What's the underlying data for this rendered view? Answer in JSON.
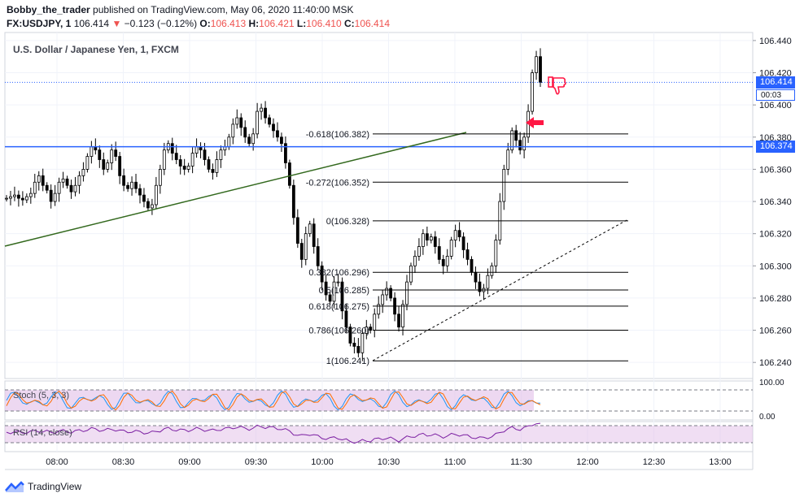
{
  "header": {
    "author": "Bobby_the_trader",
    "published_text": "published on TradingView.com, May 06, 2020 11:40:00 MSK",
    "symbol": "FX:USDJPY, 1",
    "last": "106.414",
    "change": "−0.123 (−0.12%)",
    "open_label": "O:",
    "open": "106.413",
    "high_label": "H:",
    "high": "106.421",
    "low_label": "L:",
    "low": "106.410",
    "close_label": "C:",
    "close": "106.414"
  },
  "chart_title": "U.S. Dollar / Japanese Yen, 1, FXCM",
  "price_axis": [
    "106.440",
    "106.420",
    "106.400",
    "106.380",
    "106.360",
    "106.340",
    "106.320",
    "106.300",
    "106.280",
    "106.260",
    "106.240"
  ],
  "time_axis": [
    "08:00",
    "08:30",
    "09:00",
    "09:30",
    "10:00",
    "10:30",
    "11:00",
    "11:30",
    "12:00",
    "12:30",
    "13:00"
  ],
  "last_price_tag": "106.414",
  "countdown": "00:03",
  "hline_tag": "106.374",
  "fib_levels": [
    {
      "label": "-0.618(106.382)",
      "price": 106.382
    },
    {
      "label": "-0.272(106.352)",
      "price": 106.352
    },
    {
      "label": "0(106.328)",
      "price": 106.328
    },
    {
      "label": "0.382(106.296)",
      "price": 106.296
    },
    {
      "label": "0.5(106.285)",
      "price": 106.285
    },
    {
      "label": "0.618(106.275)",
      "price": 106.275
    },
    {
      "label": "0.786(106.260)",
      "price": 106.26
    },
    {
      "label": "1(106.241)",
      "price": 106.241
    }
  ],
  "stoch": {
    "label": "Stoch (5, 3, 3)",
    "levels": [
      "100.00",
      "0.00"
    ]
  },
  "rsi": {
    "label": "RSI (14, close)"
  },
  "footer": {
    "brand": "TradingView"
  },
  "colors": {
    "up": "#000000",
    "down": "#000000",
    "trendline": "#33691e",
    "hline": "#2962ff",
    "fib": "#000000",
    "stoch_fill": "#e1bee7",
    "rsi_line": "#7b1fa2",
    "arrow": "#ff1744"
  },
  "chart_data": {
    "type": "candlestick",
    "series_name": "USDJPY",
    "y_range": [
      106.23,
      106.445
    ],
    "x_range": [
      "07:45",
      "13:15"
    ],
    "closes": [
      106.342,
      106.343,
      106.344,
      106.342,
      106.341,
      106.343,
      106.345,
      106.352,
      106.356,
      106.35,
      106.347,
      106.34,
      106.345,
      106.352,
      106.354,
      106.35,
      106.346,
      106.35,
      106.356,
      106.36,
      106.368,
      106.374,
      106.372,
      106.366,
      106.36,
      106.364,
      106.372,
      106.368,
      106.356,
      106.35,
      106.348,
      106.352,
      106.348,
      106.344,
      106.34,
      106.336,
      106.338,
      106.35,
      106.36,
      106.372,
      106.376,
      106.37,
      106.366,
      106.362,
      106.36,
      106.362,
      106.37,
      106.374,
      106.372,
      106.366,
      106.36,
      106.358,
      106.366,
      106.372,
      106.374,
      106.38,
      106.388,
      106.392,
      106.386,
      106.38,
      106.376,
      106.382,
      106.396,
      106.398,
      106.392,
      106.388,
      106.384,
      106.38,
      106.376,
      106.364,
      106.35,
      106.33,
      106.314,
      106.304,
      106.32,
      106.326,
      106.312,
      106.3,
      106.29,
      106.282,
      106.278,
      106.29,
      106.29,
      106.272,
      106.262,
      106.252,
      106.25,
      106.246,
      106.258,
      106.262,
      106.26,
      106.27,
      106.276,
      106.282,
      106.286,
      106.28,
      106.27,
      106.262,
      106.276,
      106.29,
      106.3,
      106.306,
      106.312,
      106.32,
      106.316,
      106.318,
      106.312,
      106.304,
      106.3,
      106.306,
      106.316,
      106.322,
      106.318,
      106.31,
      106.304,
      106.296,
      106.29,
      106.284,
      106.286,
      106.294,
      106.3,
      106.316,
      106.34,
      106.36,
      106.372,
      106.384,
      106.378,
      106.372,
      106.38,
      106.396,
      106.42,
      106.43,
      106.414
    ]
  }
}
